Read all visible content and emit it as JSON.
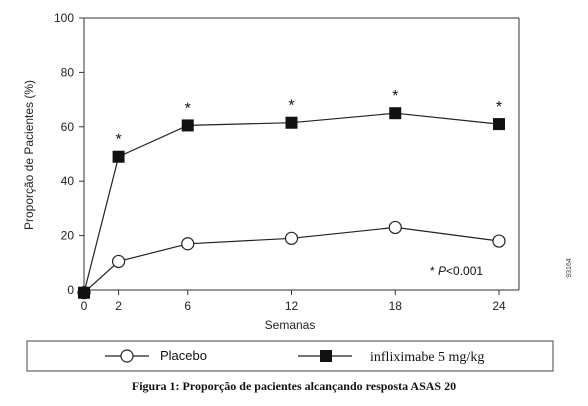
{
  "chart_data": {
    "type": "line",
    "xlabel": "Semanas",
    "ylabel": "Proporção de Pacientes (%)",
    "x": [
      0,
      2,
      6,
      12,
      18,
      24
    ],
    "xticks": [
      0,
      2,
      6,
      12,
      18,
      24
    ],
    "yticks": [
      0,
      20,
      40,
      60,
      80,
      100
    ],
    "xlim": [
      0,
      24
    ],
    "ylim": [
      0,
      100
    ],
    "grid": false,
    "legend": "bottom",
    "series": [
      {
        "name": "Placebo",
        "marker": "open-circle",
        "values": [
          -1,
          10.5,
          17,
          19,
          23,
          18
        ]
      },
      {
        "name": "infliximabe 5 mg/kg",
        "marker": "filled-square",
        "values": [
          -1,
          49,
          60.5,
          61.5,
          65,
          61
        ]
      }
    ],
    "significance_marks": {
      "symbol": "*",
      "x": [
        2,
        6,
        12,
        18,
        24
      ]
    },
    "annotation": "* P<0.001",
    "annotation_prefix": "* ",
    "annotation_p": "P",
    "annotation_rest": "<0.001",
    "figure_id": "93164",
    "caption": "Figura 1: Proporção de pacientes alcançando resposta ASAS 20",
    "colors": {
      "line": "#222222",
      "marker_fill": "#111111",
      "open_marker_fill": "#ffffff"
    }
  }
}
